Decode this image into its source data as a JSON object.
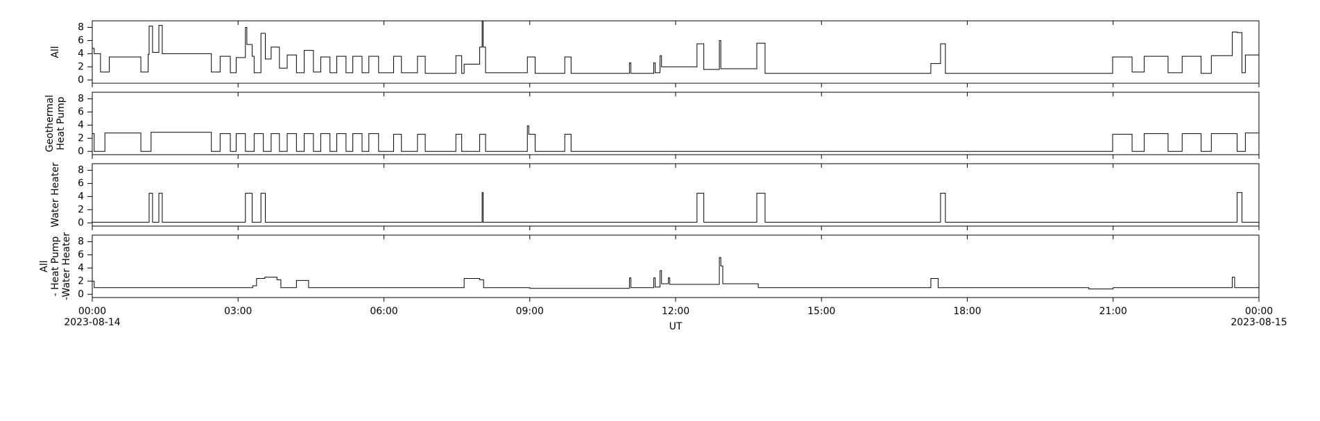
{
  "chart_data": [
    {
      "type": "line",
      "drawstyle": "steps-post",
      "ylabel": [
        "All"
      ],
      "color": "#000000",
      "x": [
        0,
        0.04,
        0.17,
        0.35,
        1.0,
        1.15,
        1.17,
        1.24,
        1.37,
        1.44,
        2.45,
        2.63,
        2.84,
        2.96,
        3.15,
        3.18,
        3.29,
        3.33,
        3.47,
        3.56,
        3.68,
        3.85,
        4.01,
        4.2,
        4.36,
        4.55,
        4.7,
        4.89,
        5.03,
        5.22,
        5.36,
        5.55,
        5.69,
        5.89,
        6.2,
        6.36,
        6.69,
        6.85,
        7.48,
        7.6,
        7.65,
        7.97,
        8.02,
        8.04,
        8.09,
        8.95,
        9.11,
        9.72,
        9.85,
        11.05,
        11.08,
        11.55,
        11.58,
        11.68,
        11.71,
        12.44,
        12.58,
        12.9,
        12.93,
        13.67,
        13.84,
        17.25,
        17.45,
        17.55,
        20.99,
        21.39,
        21.64,
        22.13,
        22.42,
        22.81,
        23.02,
        23.45,
        23.55,
        23.65,
        23.72
      ],
      "values": [
        4.8,
        4.0,
        1.2,
        3.5,
        1.2,
        3.9,
        8.2,
        4.2,
        8.3,
        4.0,
        1.2,
        3.6,
        1.1,
        3.4,
        8.0,
        5.4,
        3.6,
        1.1,
        7.1,
        3.2,
        5.0,
        1.8,
        3.8,
        1.1,
        4.5,
        1.2,
        3.5,
        1.1,
        3.6,
        1.1,
        3.6,
        1.1,
        3.6,
        1.1,
        3.6,
        1.1,
        3.6,
        1.0,
        3.7,
        1.0,
        2.4,
        5.0,
        9.0,
        5.0,
        1.1,
        3.5,
        1.0,
        3.5,
        1.0,
        2.6,
        1.0,
        2.6,
        1.1,
        3.7,
        2.0,
        5.5,
        1.6,
        6.0,
        1.7,
        5.6,
        1.0,
        2.5,
        5.5,
        1.0,
        3.5,
        1.2,
        3.6,
        1.1,
        3.6,
        1.0,
        3.7,
        7.3,
        7.2,
        1.1,
        3.8
      ],
      "xlim": [
        0,
        24
      ],
      "ylim": [
        -0.5,
        9
      ],
      "yticks": [
        0,
        2,
        4,
        6,
        8
      ],
      "xticks": [
        {
          "value": 0,
          "label": "00:00"
        },
        {
          "value": 3,
          "label": "03:00"
        },
        {
          "value": 6,
          "label": "06:00"
        },
        {
          "value": 9,
          "label": "09:00"
        },
        {
          "value": 12,
          "label": "12:00"
        },
        {
          "value": 15,
          "label": "15:00"
        },
        {
          "value": 18,
          "label": "18:00"
        },
        {
          "value": 21,
          "label": "21:00"
        },
        {
          "value": 24,
          "label": "00:00"
        }
      ]
    },
    {
      "type": "line",
      "drawstyle": "steps-post",
      "ylabel": [
        "Geothermal",
        "Heat Pump"
      ],
      "color": "#000000",
      "x": [
        0,
        0.04,
        0.26,
        1.0,
        1.21,
        2.45,
        2.63,
        2.84,
        2.96,
        3.15,
        3.33,
        3.52,
        3.68,
        3.85,
        4.01,
        4.2,
        4.36,
        4.55,
        4.7,
        4.89,
        5.03,
        5.22,
        5.36,
        5.55,
        5.69,
        5.89,
        6.2,
        6.36,
        6.69,
        6.85,
        7.48,
        7.6,
        7.97,
        8.09,
        8.95,
        8.98,
        9.11,
        9.72,
        9.85,
        20.99,
        21.39,
        21.64,
        22.13,
        22.42,
        22.81,
        23.02,
        23.55,
        23.72
      ],
      "values": [
        2.7,
        0,
        2.8,
        0,
        2.9,
        0,
        2.7,
        0,
        2.7,
        0,
        2.7,
        0,
        2.7,
        0,
        2.7,
        0,
        2.7,
        0,
        2.7,
        0,
        2.7,
        0,
        2.7,
        0,
        2.7,
        0,
        2.6,
        0,
        2.6,
        0,
        2.6,
        0,
        2.6,
        0,
        3.9,
        2.6,
        0,
        2.6,
        0,
        2.6,
        0,
        2.7,
        0,
        2.7,
        0,
        2.7,
        0,
        2.8
      ],
      "xlim": [
        0,
        24
      ],
      "ylim": [
        -0.5,
        9
      ],
      "yticks": [
        0,
        2,
        4,
        6,
        8
      ],
      "xticks": [
        {
          "value": 0,
          "label": "00:00"
        },
        {
          "value": 3,
          "label": "03:00"
        },
        {
          "value": 6,
          "label": "06:00"
        },
        {
          "value": 9,
          "label": "09:00"
        },
        {
          "value": 12,
          "label": "12:00"
        },
        {
          "value": 15,
          "label": "15:00"
        },
        {
          "value": 18,
          "label": "18:00"
        },
        {
          "value": 21,
          "label": "21:00"
        },
        {
          "value": 24,
          "label": "00:00"
        }
      ]
    },
    {
      "type": "line",
      "drawstyle": "steps-post",
      "ylabel": [
        "Water Heater"
      ],
      "color": "#000000",
      "x": [
        0,
        1.17,
        1.24,
        1.37,
        1.44,
        3.15,
        3.29,
        3.47,
        3.56,
        8.02,
        8.04,
        12.44,
        12.58,
        13.67,
        13.84,
        17.45,
        17.55,
        23.55,
        23.65
      ],
      "values": [
        0.1,
        4.5,
        0.1,
        4.5,
        0.1,
        4.5,
        0.1,
        4.5,
        0.1,
        4.6,
        0.1,
        4.5,
        0.1,
        4.5,
        0.1,
        4.5,
        0.1,
        4.6,
        0.1
      ],
      "xlim": [
        0,
        24
      ],
      "ylim": [
        -0.5,
        9
      ],
      "yticks": [
        0,
        2,
        4,
        6,
        8
      ],
      "xticks": [
        {
          "value": 0,
          "label": "00:00"
        },
        {
          "value": 3,
          "label": "03:00"
        },
        {
          "value": 6,
          "label": "06:00"
        },
        {
          "value": 9,
          "label": "09:00"
        },
        {
          "value": 12,
          "label": "12:00"
        },
        {
          "value": 15,
          "label": "15:00"
        },
        {
          "value": 18,
          "label": "18:00"
        },
        {
          "value": 21,
          "label": "21:00"
        },
        {
          "value": 24,
          "label": "00:00"
        }
      ]
    },
    {
      "type": "line",
      "drawstyle": "steps-post",
      "ylabel": [
        "All",
        "- Heat Pump",
        "-Water Heater"
      ],
      "color": "#000000",
      "x": [
        0,
        0.04,
        3.3,
        3.38,
        3.55,
        3.8,
        3.88,
        4.2,
        4.45,
        7.65,
        7.97,
        8.05,
        9.0,
        11.05,
        11.08,
        11.55,
        11.58,
        11.68,
        11.71,
        11.85,
        11.88,
        12.9,
        12.93,
        12.97,
        13.7,
        17.25,
        17.4,
        20.5,
        21.0,
        23.45,
        23.5
      ],
      "values": [
        2.0,
        1.0,
        1.3,
        2.4,
        2.6,
        2.2,
        1.0,
        2.1,
        1.0,
        2.4,
        2.2,
        1.0,
        0.9,
        2.5,
        1.0,
        2.5,
        1.1,
        3.6,
        1.6,
        2.5,
        1.5,
        5.6,
        4.3,
        1.6,
        1.0,
        2.4,
        1.0,
        0.8,
        1.0,
        2.6,
        1.0
      ],
      "xlim": [
        0,
        24
      ],
      "ylim": [
        -0.5,
        9
      ],
      "yticks": [
        0,
        2,
        4,
        6,
        8
      ],
      "xticks": [
        {
          "value": 0,
          "label": "00:00"
        },
        {
          "value": 3,
          "label": "03:00"
        },
        {
          "value": 6,
          "label": "06:00"
        },
        {
          "value": 9,
          "label": "09:00"
        },
        {
          "value": 12,
          "label": "12:00"
        },
        {
          "value": 15,
          "label": "15:00"
        },
        {
          "value": 18,
          "label": "18:00"
        },
        {
          "value": 21,
          "label": "21:00"
        },
        {
          "value": 24,
          "label": "00:00"
        }
      ],
      "x_date_labels": [
        {
          "value": 0,
          "label": "2023-08-14"
        },
        {
          "value": 24,
          "label": "2023-08-15"
        }
      ],
      "xlabel": "UT"
    }
  ]
}
